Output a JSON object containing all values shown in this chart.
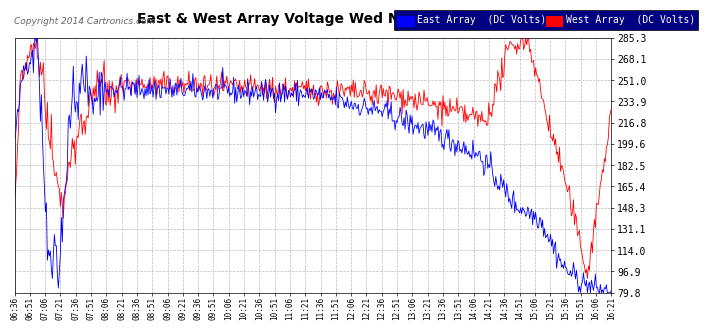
{
  "title": "East & West Array Voltage Wed Nov 12 16:28",
  "copyright": "Copyright 2014 Cartronics.com",
  "east_label": "East Array  (DC Volts)",
  "west_label": "West Array  (DC Volts)",
  "east_color": "#0000ff",
  "west_color": "#ff0000",
  "bg_color": "#ffffff",
  "plot_bg_color": "#ffffff",
  "grid_color": "#bbbbbb",
  "legend_bg": "#000080",
  "ylim": [
    79.8,
    285.3
  ],
  "yticks": [
    79.8,
    96.9,
    114.0,
    131.1,
    148.3,
    165.4,
    182.5,
    199.6,
    216.8,
    233.9,
    251.0,
    268.1,
    285.3
  ],
  "num_points": 600
}
